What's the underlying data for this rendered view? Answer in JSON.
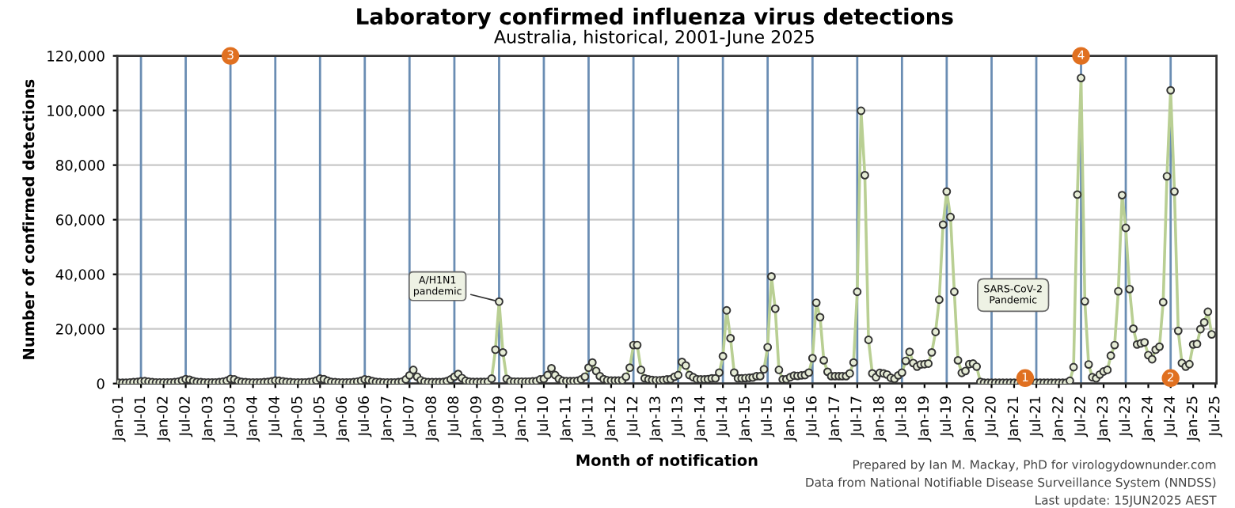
{
  "chart_data": {
    "type": "line",
    "title": "Laboratory confirmed influenza virus detections",
    "subtitle": "Australia, historical, 2001-June 2025",
    "xlabel": "Month of notification",
    "ylabel": "Number of confirmed detections",
    "series": [
      {
        "color": "#b9cf93",
        "marker": "circle",
        "line_style": "solid",
        "x": [
          "2001-01",
          "2001-02",
          "2001-03",
          "2001-04",
          "2001-05",
          "2001-06",
          "2001-07",
          "2001-08",
          "2001-09",
          "2001-10",
          "2001-11",
          "2001-12",
          "2002-01",
          "2002-02",
          "2002-03",
          "2002-04",
          "2002-05",
          "2002-06",
          "2002-07",
          "2002-08",
          "2002-09",
          "2002-10",
          "2002-11",
          "2002-12",
          "2003-01",
          "2003-02",
          "2003-03",
          "2003-04",
          "2003-05",
          "2003-06",
          "2003-07",
          "2003-08",
          "2003-09",
          "2003-10",
          "2003-11",
          "2003-12",
          "2004-01",
          "2004-02",
          "2004-03",
          "2004-04",
          "2004-05",
          "2004-06",
          "2004-07",
          "2004-08",
          "2004-09",
          "2004-10",
          "2004-11",
          "2004-12",
          "2005-01",
          "2005-02",
          "2005-03",
          "2005-04",
          "2005-05",
          "2005-06",
          "2005-07",
          "2005-08",
          "2005-09",
          "2005-10",
          "2005-11",
          "2005-12",
          "2006-01",
          "2006-02",
          "2006-03",
          "2006-04",
          "2006-05",
          "2006-06",
          "2006-07",
          "2006-08",
          "2006-09",
          "2006-10",
          "2006-11",
          "2006-12",
          "2007-01",
          "2007-02",
          "2007-03",
          "2007-04",
          "2007-05",
          "2007-06",
          "2007-07",
          "2007-08",
          "2007-09",
          "2007-10",
          "2007-11",
          "2007-12",
          "2008-01",
          "2008-02",
          "2008-03",
          "2008-04",
          "2008-05",
          "2008-06",
          "2008-07",
          "2008-08",
          "2008-09",
          "2008-10",
          "2008-11",
          "2008-12",
          "2009-01",
          "2009-02",
          "2009-03",
          "2009-04",
          "2009-05",
          "2009-06",
          "2009-07",
          "2009-08",
          "2009-09",
          "2009-10",
          "2009-11",
          "2009-12",
          "2010-01",
          "2010-02",
          "2010-03",
          "2010-04",
          "2010-05",
          "2010-06",
          "2010-07",
          "2010-08",
          "2010-09",
          "2010-10",
          "2010-11",
          "2010-12",
          "2011-01",
          "2011-02",
          "2011-03",
          "2011-04",
          "2011-05",
          "2011-06",
          "2011-07",
          "2011-08",
          "2011-09",
          "2011-10",
          "2011-11",
          "2011-12",
          "2012-01",
          "2012-02",
          "2012-03",
          "2012-04",
          "2012-05",
          "2012-06",
          "2012-07",
          "2012-08",
          "2012-09",
          "2012-10",
          "2012-11",
          "2012-12",
          "2013-01",
          "2013-02",
          "2013-03",
          "2013-04",
          "2013-05",
          "2013-06",
          "2013-07",
          "2013-08",
          "2013-09",
          "2013-10",
          "2013-11",
          "2013-12",
          "2014-01",
          "2014-02",
          "2014-03",
          "2014-04",
          "2014-05",
          "2014-06",
          "2014-07",
          "2014-08",
          "2014-09",
          "2014-10",
          "2014-11",
          "2014-12",
          "2015-01",
          "2015-02",
          "2015-03",
          "2015-04",
          "2015-05",
          "2015-06",
          "2015-07",
          "2015-08",
          "2015-09",
          "2015-10",
          "2015-11",
          "2015-12",
          "2016-01",
          "2016-02",
          "2016-03",
          "2016-04",
          "2016-05",
          "2016-06",
          "2016-07",
          "2016-08",
          "2016-09",
          "2016-10",
          "2016-11",
          "2016-12",
          "2017-01",
          "2017-02",
          "2017-03",
          "2017-04",
          "2017-05",
          "2017-06",
          "2017-07",
          "2017-08",
          "2017-09",
          "2017-10",
          "2017-11",
          "2017-12",
          "2018-01",
          "2018-02",
          "2018-03",
          "2018-04",
          "2018-05",
          "2018-06",
          "2018-07",
          "2018-08",
          "2018-09",
          "2018-10",
          "2018-11",
          "2018-12",
          "2019-01",
          "2019-02",
          "2019-03",
          "2019-04",
          "2019-05",
          "2019-06",
          "2019-07",
          "2019-08",
          "2019-09",
          "2019-10",
          "2019-11",
          "2019-12",
          "2020-01",
          "2020-02",
          "2020-03",
          "2020-04",
          "2020-05",
          "2020-06",
          "2020-07",
          "2020-08",
          "2020-09",
          "2020-10",
          "2020-11",
          "2020-12",
          "2021-01",
          "2021-02",
          "2021-03",
          "2021-04",
          "2021-05",
          "2021-06",
          "2021-07",
          "2021-08",
          "2021-09",
          "2021-10",
          "2021-11",
          "2021-12",
          "2022-01",
          "2022-02",
          "2022-03",
          "2022-04",
          "2022-05",
          "2022-06",
          "2022-07",
          "2022-08",
          "2022-09",
          "2022-10",
          "2022-11",
          "2022-12",
          "2023-01",
          "2023-02",
          "2023-03",
          "2023-04",
          "2023-05",
          "2023-06",
          "2023-07",
          "2023-08",
          "2023-09",
          "2023-10",
          "2023-11",
          "2023-12",
          "2024-01",
          "2024-02",
          "2024-03",
          "2024-04",
          "2024-05",
          "2024-06",
          "2024-07",
          "2024-08",
          "2024-09",
          "2024-10",
          "2024-11",
          "2024-12",
          "2025-01",
          "2025-02",
          "2025-03",
          "2025-04",
          "2025-05",
          "2025-06"
        ],
        "values": [
          300,
          300,
          300,
          400,
          500,
          600,
          800,
          900,
          700,
          500,
          400,
          400,
          400,
          400,
          400,
          500,
          700,
          1100,
          1600,
          1400,
          900,
          600,
          500,
          400,
          400,
          400,
          400,
          500,
          700,
          1000,
          1700,
          1500,
          900,
          600,
          500,
          400,
          400,
          400,
          400,
          500,
          600,
          800,
          1100,
          1000,
          800,
          600,
          500,
          400,
          400,
          400,
          400,
          500,
          700,
          1100,
          1800,
          1600,
          1000,
          600,
          500,
          400,
          400,
          400,
          400,
          500,
          700,
          1000,
          1500,
          1300,
          900,
          600,
          500,
          400,
          400,
          400,
          400,
          500,
          700,
          1500,
          3000,
          5000,
          2500,
          1200,
          700,
          500,
          500,
          500,
          500,
          600,
          900,
          1500,
          2500,
          3500,
          2000,
          1000,
          700,
          600,
          600,
          600,
          600,
          700,
          1800,
          12400,
          30000,
          11400,
          1700,
          800,
          700,
          700,
          700,
          700,
          700,
          800,
          900,
          1500,
          1700,
          3100,
          5600,
          3100,
          1700,
          1000,
          900,
          900,
          900,
          1000,
          1500,
          2500,
          5800,
          7700,
          4600,
          2700,
          1600,
          1200,
          1100,
          1100,
          1100,
          1200,
          2500,
          5800,
          14100,
          14100,
          5000,
          1900,
          1500,
          1300,
          1200,
          1200,
          1300,
          1500,
          1600,
          2500,
          3100,
          7900,
          6600,
          3100,
          2300,
          1600,
          1500,
          1500,
          1600,
          1900,
          1900,
          4000,
          10000,
          26800,
          16600,
          4000,
          1900,
          1900,
          2000,
          2100,
          2200,
          2700,
          2700,
          5200,
          13300,
          39200,
          27400,
          5000,
          1500,
          1600,
          2300,
          2900,
          2800,
          3000,
          3100,
          4000,
          9300,
          29600,
          24300,
          8500,
          4300,
          2700,
          2700,
          2700,
          2700,
          2700,
          3700,
          7700,
          33600,
          99900,
          76300,
          16000,
          3700,
          2300,
          3900,
          3700,
          3300,
          2100,
          1700,
          3000,
          4000,
          8300,
          11600,
          7500,
          6200,
          7000,
          7100,
          7300,
          11400,
          18900,
          30700,
          58200,
          70300,
          61000,
          33600,
          8500,
          3900,
          4600,
          7100,
          7300,
          6200,
          600,
          300,
          300,
          300,
          300,
          300,
          300,
          300,
          300,
          300,
          300,
          300,
          300,
          300,
          300,
          300,
          300,
          300,
          300,
          300,
          300,
          300,
          300,
          300,
          1000,
          6000,
          69200,
          111900,
          30100,
          7000,
          2300,
          1900,
          3300,
          4400,
          5000,
          10200,
          14100,
          33800,
          69000,
          57000,
          34600,
          20100,
          14300,
          14700,
          15100,
          10400,
          8900,
          12400,
          13500,
          29800,
          75900,
          107400,
          70300,
          19300,
          7500,
          6200,
          7100,
          14300,
          14500,
          19900,
          22400,
          26300,
          18000
        ]
      }
    ],
    "xlim": [
      "2000-12-20",
      "2025-07-10"
    ],
    "xticks": [
      {
        "value": "2001-01",
        "label": "Jan-01"
      },
      {
        "value": "2001-07",
        "label": "Jul-01"
      },
      {
        "value": "2002-01",
        "label": "Jan-02"
      },
      {
        "value": "2002-07",
        "label": "Jul-02"
      },
      {
        "value": "2003-01",
        "label": "Jan-03"
      },
      {
        "value": "2003-07",
        "label": "Jul-03"
      },
      {
        "value": "2004-01",
        "label": "Jan-04"
      },
      {
        "value": "2004-07",
        "label": "Jul-04"
      },
      {
        "value": "2005-01",
        "label": "Jan-05"
      },
      {
        "value": "2005-07",
        "label": "Jul-05"
      },
      {
        "value": "2006-01",
        "label": "Jan-06"
      },
      {
        "value": "2006-07",
        "label": "Jul-06"
      },
      {
        "value": "2007-01",
        "label": "Jan-07"
      },
      {
        "value": "2007-07",
        "label": "Jul-07"
      },
      {
        "value": "2008-01",
        "label": "Jan-08"
      },
      {
        "value": "2008-07",
        "label": "Jul-08"
      },
      {
        "value": "2009-01",
        "label": "Jan-09"
      },
      {
        "value": "2009-07",
        "label": "Jul-09"
      },
      {
        "value": "2010-01",
        "label": "Jan-10"
      },
      {
        "value": "2010-07",
        "label": "Jul-10"
      },
      {
        "value": "2011-01",
        "label": "Jan-11"
      },
      {
        "value": "2011-07",
        "label": "Jul-11"
      },
      {
        "value": "2012-01",
        "label": "Jan-12"
      },
      {
        "value": "2012-07",
        "label": "Jul-12"
      },
      {
        "value": "2013-01",
        "label": "Jan-13"
      },
      {
        "value": "2013-07",
        "label": "Jul-13"
      },
      {
        "value": "2014-01",
        "label": "Jan-14"
      },
      {
        "value": "2014-07",
        "label": "Jul-14"
      },
      {
        "value": "2015-01",
        "label": "Jan-15"
      },
      {
        "value": "2015-07",
        "label": "Jul-15"
      },
      {
        "value": "2016-01",
        "label": "Jan-16"
      },
      {
        "value": "2016-07",
        "label": "Jul-16"
      },
      {
        "value": "2017-01",
        "label": "Jan-17"
      },
      {
        "value": "2017-07",
        "label": "Jul-17"
      },
      {
        "value": "2018-01",
        "label": "Jan-18"
      },
      {
        "value": "2018-07",
        "label": "Jul-18"
      },
      {
        "value": "2019-01",
        "label": "Jan-19"
      },
      {
        "value": "2019-07",
        "label": "Jul-19"
      },
      {
        "value": "2020-01",
        "label": "Jan-20"
      },
      {
        "value": "2020-07",
        "label": "Jul-20"
      },
      {
        "value": "2021-01",
        "label": "Jan-21"
      },
      {
        "value": "2021-07",
        "label": "Jul-21"
      },
      {
        "value": "2022-01",
        "label": "Jan-22"
      },
      {
        "value": "2022-07",
        "label": "Jul-22"
      },
      {
        "value": "2023-01",
        "label": "Jan-23"
      },
      {
        "value": "2023-07",
        "label": "Jul-23"
      },
      {
        "value": "2024-01",
        "label": "Jan-24"
      },
      {
        "value": "2024-07",
        "label": "Jul-24"
      },
      {
        "value": "2025-01",
        "label": "Jan-25"
      },
      {
        "value": "2025-07",
        "label": "Jul-25"
      }
    ],
    "ylim": [
      0,
      120000
    ],
    "yticks": [
      {
        "value": 0,
        "label": "0"
      },
      {
        "value": 20000,
        "label": "20,000"
      },
      {
        "value": 40000,
        "label": "40,000"
      },
      {
        "value": 60000,
        "label": "60,000"
      },
      {
        "value": 80000,
        "label": "80,000"
      },
      {
        "value": 100000,
        "label": "100,000"
      },
      {
        "value": 120000,
        "label": "120,000"
      }
    ],
    "grid": "y",
    "ref_lines": [
      {
        "axis": "x",
        "value": "2001-07",
        "color": "#6a8db3"
      },
      {
        "axis": "x",
        "value": "2002-07",
        "color": "#6a8db3"
      },
      {
        "axis": "x",
        "value": "2003-07",
        "color": "#6a8db3"
      },
      {
        "axis": "x",
        "value": "2004-07",
        "color": "#6a8db3"
      },
      {
        "axis": "x",
        "value": "2005-07",
        "color": "#6a8db3"
      },
      {
        "axis": "x",
        "value": "2006-07",
        "color": "#6a8db3"
      },
      {
        "axis": "x",
        "value": "2007-07",
        "color": "#6a8db3"
      },
      {
        "axis": "x",
        "value": "2008-07",
        "color": "#6a8db3"
      },
      {
        "axis": "x",
        "value": "2009-07",
        "color": "#6a8db3"
      },
      {
        "axis": "x",
        "value": "2010-07",
        "color": "#6a8db3"
      },
      {
        "axis": "x",
        "value": "2011-07",
        "color": "#6a8db3"
      },
      {
        "axis": "x",
        "value": "2012-07",
        "color": "#6a8db3"
      },
      {
        "axis": "x",
        "value": "2013-07",
        "color": "#6a8db3"
      },
      {
        "axis": "x",
        "value": "2014-07",
        "color": "#6a8db3"
      },
      {
        "axis": "x",
        "value": "2015-07",
        "color": "#6a8db3"
      },
      {
        "axis": "x",
        "value": "2016-07",
        "color": "#6a8db3"
      },
      {
        "axis": "x",
        "value": "2017-07",
        "color": "#6a8db3"
      },
      {
        "axis": "x",
        "value": "2018-07",
        "color": "#6a8db3"
      },
      {
        "axis": "x",
        "value": "2019-07",
        "color": "#6a8db3"
      },
      {
        "axis": "x",
        "value": "2020-07",
        "color": "#6a8db3"
      },
      {
        "axis": "x",
        "value": "2021-07",
        "color": "#6a8db3"
      },
      {
        "axis": "x",
        "value": "2022-07",
        "color": "#6a8db3"
      },
      {
        "axis": "x",
        "value": "2023-07",
        "color": "#6a8db3"
      },
      {
        "axis": "x",
        "value": "2024-07",
        "color": "#6a8db3"
      }
    ],
    "annotations": [
      {
        "text": "A/H1N1\npandemic",
        "x": "2009-07",
        "y": 30000
      },
      "SARS-CoV-2\nPandemic",
      {
        "text": "3",
        "x": "2003-07",
        "y": 120000
      },
      {
        "text": "4",
        "x": "2022-07",
        "y": 120000
      },
      {
        "text": "1",
        "x": "2021-04",
        "y": 2000
      },
      {
        "text": "2",
        "x": "2024-07",
        "y": 2000
      },
      "Prepared by Ian M. Mackay, PhD for virologydownunder.com",
      "Data from National Notifiable Disease Surveillance System (NNDSS)",
      "Last update: 15JUN2025 AEST"
    ]
  }
}
